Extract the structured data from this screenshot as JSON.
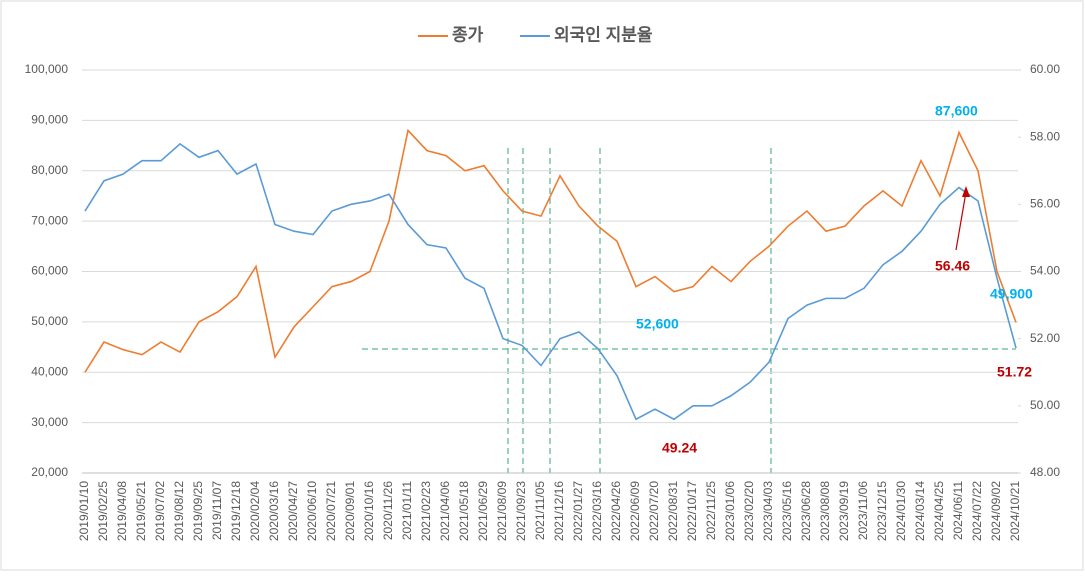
{
  "chart_data": {
    "type": "line",
    "categories": [
      "2019/01/10",
      "2019/02/25",
      "2019/04/08",
      "2019/05/21",
      "2019/07/02",
      "2019/08/12",
      "2019/09/25",
      "2019/11/07",
      "2019/12/18",
      "2020/02/04",
      "2020/03/16",
      "2020/04/27",
      "2020/06/10",
      "2020/07/21",
      "2020/09/01",
      "2020/10/16",
      "2020/11/26",
      "2021/01/11",
      "2021/02/23",
      "2021/04/06",
      "2021/05/18",
      "2021/06/29",
      "2021/08/09",
      "2021/09/23",
      "2021/11/05",
      "2021/12/16",
      "2022/01/27",
      "2022/03/16",
      "2022/04/26",
      "2022/06/09",
      "2022/07/20",
      "2022/08/31",
      "2022/10/17",
      "2022/11/25",
      "2023/01/06",
      "2023/02/20",
      "2023/04/03",
      "2023/05/16",
      "2023/06/28",
      "2023/08/08",
      "2023/09/19",
      "2023/11/06",
      "2023/12/15",
      "2024/01/30",
      "2024/03/14",
      "2024/04/25",
      "2024/06/11",
      "2024/07/22",
      "2024/09/02",
      "2024/10/21"
    ],
    "series": [
      {
        "name": "종가",
        "color": "#ed7d31",
        "values": [
          40000,
          46000,
          44500,
          43500,
          46000,
          44000,
          50000,
          52000,
          55000,
          61000,
          43000,
          49000,
          53000,
          57000,
          58000,
          60000,
          70000,
          88000,
          84000,
          83000,
          80000,
          81000,
          76000,
          72000,
          71000,
          79000,
          73000,
          69000,
          66000,
          57000,
          59000,
          56000,
          57000,
          61000,
          58000,
          62000,
          65000,
          69000,
          72000,
          68000,
          69000,
          73000,
          76000,
          73000,
          82000,
          75000,
          87600,
          80000,
          60000,
          49900
        ]
      },
      {
        "name": "외국인 지분율",
        "color": "#5b9bd5",
        "axis": "y2",
        "values": [
          55.8,
          56.7,
          56.9,
          57.3,
          57.3,
          57.8,
          57.4,
          57.6,
          56.9,
          57.2,
          55.4,
          55.2,
          55.1,
          55.8,
          56.0,
          56.1,
          56.3,
          55.4,
          54.8,
          54.7,
          53.8,
          53.5,
          52.0,
          51.8,
          51.2,
          52.0,
          52.2,
          51.7,
          50.9,
          49.6,
          49.9,
          49.6,
          50.0,
          50.0,
          50.3,
          50.7,
          51.3,
          52.6,
          53.0,
          53.2,
          53.2,
          53.5,
          54.2,
          54.6,
          55.2,
          56.0,
          56.5,
          56.1,
          53.8,
          51.72
        ]
      }
    ],
    "ylim": [
      20000,
      100000
    ],
    "yticks": [
      {
        "value": 20000,
        "label": "20,000"
      },
      {
        "value": 30000,
        "label": "30,000"
      },
      {
        "value": 40000,
        "label": "40,000"
      },
      {
        "value": 50000,
        "label": "50,000"
      },
      {
        "value": 60000,
        "label": "60,000"
      },
      {
        "value": 70000,
        "label": "70,000"
      },
      {
        "value": 80000,
        "label": "80,000"
      },
      {
        "value": 90000,
        "label": "90,000"
      },
      {
        "value": 100000,
        "label": "100,000"
      }
    ],
    "y2lim": [
      48,
      60
    ],
    "y2ticks": [
      {
        "value": 48,
        "label": "48.00"
      },
      {
        "value": 50,
        "label": "50.00"
      },
      {
        "value": 52,
        "label": "52.00"
      },
      {
        "value": 54,
        "label": "54.00"
      },
      {
        "value": 56,
        "label": "56.00"
      },
      {
        "value": 58,
        "label": "58.00"
      },
      {
        "value": 60,
        "label": "60.00"
      }
    ],
    "grid": true,
    "legend": "top",
    "annotations": [
      "87,600",
      "52,600",
      "49,900",
      "49.24",
      "56.46",
      "51.72"
    ]
  }
}
